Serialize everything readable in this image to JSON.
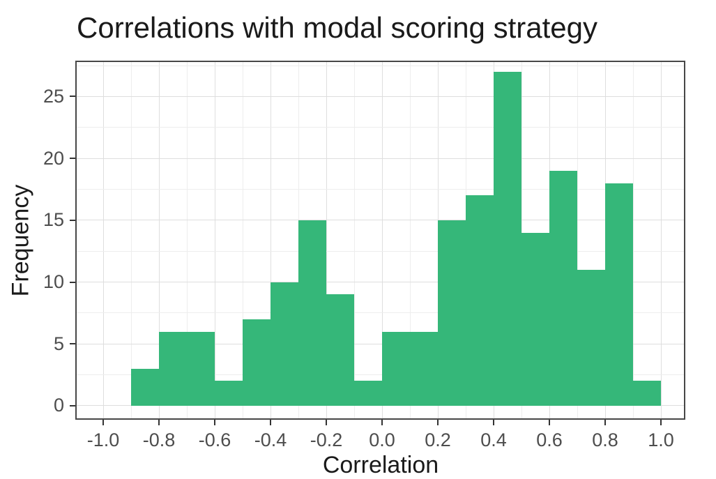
{
  "chart_data": {
    "type": "bar",
    "variant": "histogram",
    "title": "Correlations with modal scoring strategy",
    "xlabel": "Correlation",
    "ylabel": "Frequency",
    "bin_width": 0.1,
    "bin_start": -0.9,
    "bin_edges": [
      -0.9,
      -0.8,
      -0.7,
      -0.6,
      -0.5,
      -0.4,
      -0.3,
      -0.2,
      -0.1,
      0.0,
      0.1,
      0.2,
      0.3,
      0.4,
      0.5,
      0.6,
      0.7,
      0.8,
      0.9,
      1.0
    ],
    "values": [
      3,
      6,
      6,
      2,
      7,
      10,
      15,
      9,
      2,
      6,
      6,
      15,
      17,
      27,
      14,
      19,
      11,
      18,
      2
    ],
    "x_ticks": [
      -1.0,
      -0.8,
      -0.6,
      -0.4,
      -0.2,
      0.0,
      0.2,
      0.4,
      0.6,
      0.8,
      1.0
    ],
    "x_tick_labels": [
      "-1.0",
      "-0.8",
      "-0.6",
      "-0.4",
      "-0.2",
      "0.0",
      "0.2",
      "0.4",
      "0.6",
      "0.8",
      "1.0"
    ],
    "y_ticks": [
      0,
      5,
      10,
      15,
      20,
      25
    ],
    "y_tick_labels": [
      "0",
      "5",
      "10",
      "15",
      "20",
      "25"
    ],
    "xlim": [
      -1.1,
      1.0875
    ],
    "ylim": [
      -1.13,
      27.9
    ],
    "grid": {
      "major": true,
      "minor": true
    },
    "legend": "none",
    "colors": {
      "bar_fill": "#35b779",
      "grid_major": "#dedede",
      "grid_minor": "#ededed",
      "panel_border": "#474747",
      "panel_bg": "#ffffff",
      "tick_mark": "#333333",
      "tick_label": "#4d4d4d",
      "title_text": "#1a1a1a"
    }
  }
}
